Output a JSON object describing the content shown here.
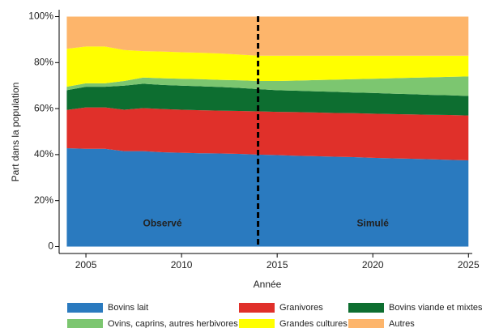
{
  "chart_data": {
    "type": "stacked_area",
    "x_label": "Année",
    "y_label": "Part dans la population",
    "x": [
      2004,
      2005,
      2006,
      2007,
      2008,
      2009,
      2010,
      2011,
      2012,
      2013,
      2014,
      2015,
      2016,
      2017,
      2018,
      2019,
      2020,
      2021,
      2022,
      2023,
      2024,
      2025
    ],
    "series": [
      {
        "name": "Bovins lait",
        "color": "#2a7abf",
        "values": [
          42.8,
          42.5,
          42.5,
          41.5,
          41.5,
          41,
          40.8,
          40.6,
          40.5,
          40.3,
          40,
          39.8,
          39.5,
          39.3,
          39.1,
          38.9,
          38.6,
          38.4,
          38.2,
          38,
          37.7,
          37.5
        ]
      },
      {
        "name": "Granivores",
        "color": "#e0302a",
        "values": [
          16.6,
          18,
          18,
          18,
          18.7,
          18.8,
          18.7,
          18.7,
          18.6,
          18.7,
          18.8,
          18.8,
          19,
          19,
          19,
          19.1,
          19.2,
          19.2,
          19.3,
          19.3,
          19.5,
          19.5
        ]
      },
      {
        "name": "Bovins viande et mixtes",
        "color": "#0d6e30",
        "values": [
          8.6,
          9,
          9,
          10.5,
          10.6,
          10.5,
          10.5,
          10.4,
          10.3,
          10,
          9.7,
          9.4,
          9.3,
          9.2,
          9.2,
          9,
          9,
          8.9,
          8.8,
          8.7,
          8.6,
          8.5
        ]
      },
      {
        "name": "Ovins, caprins, autres herbivores",
        "color": "#7cc670",
        "values": [
          1.5,
          1.5,
          1.5,
          2,
          2.7,
          2.9,
          3,
          3.1,
          3.1,
          3.3,
          3.5,
          4,
          4.4,
          4.9,
          5.3,
          5.8,
          6.2,
          6.7,
          7.1,
          7.6,
          8,
          8.5
        ]
      },
      {
        "name": "Grandes cultures",
        "color": "#ffff00",
        "values": [
          16.5,
          16,
          16,
          13.5,
          11.5,
          11.6,
          11.5,
          11.5,
          11.5,
          11.2,
          11,
          11,
          10.8,
          10.6,
          10.4,
          10.2,
          10,
          9.8,
          9.6,
          9.4,
          9.2,
          9
        ]
      },
      {
        "name": "Autres",
        "color": "#fdb56b",
        "values": [
          14,
          13,
          13,
          14.5,
          15,
          15.2,
          15.5,
          15.7,
          16,
          16.5,
          17,
          17,
          17,
          17,
          17,
          17,
          17,
          17,
          17,
          17,
          17,
          17
        ]
      }
    ],
    "xlim": [
      2003.6,
      2025.2
    ],
    "xticks": [
      2005,
      2010,
      2015,
      2020,
      2025
    ],
    "ylim": [
      -3,
      103
    ],
    "yticks": [
      0,
      {
        "value": 20,
        "label": "20%"
      },
      {
        "value": 40,
        "label": "40%"
      },
      {
        "value": 60,
        "label": "60%"
      },
      {
        "value": 80,
        "label": "80%"
      },
      {
        "value": 100,
        "label": "100%"
      }
    ],
    "vline": 2014,
    "annotations": [
      {
        "text": "Observé",
        "x": 2009,
        "y": 10
      },
      {
        "text": "Simulé",
        "x": 2020,
        "y": 10
      }
    ]
  }
}
